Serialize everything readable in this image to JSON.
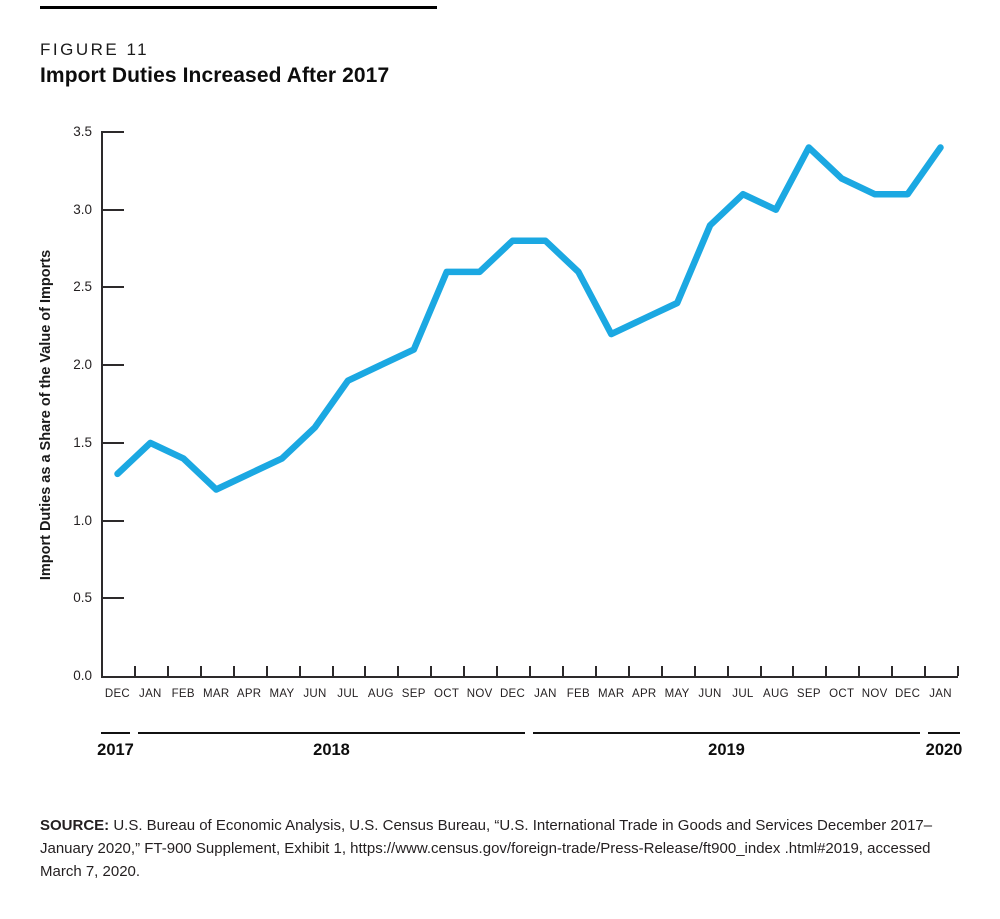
{
  "figure": {
    "label": "FIGURE 11",
    "title": "Import Duties Increased After 2017"
  },
  "chart_data": {
    "type": "line",
    "title": "Import Duties Increased After 2017",
    "xlabel": "",
    "ylabel": "Import Duties as a Share of the Value of Imports",
    "ylim": [
      0,
      3.5
    ],
    "ytick_step": 0.5,
    "grid": false,
    "legend": "none",
    "line_color": "#1BA8E2",
    "categories": [
      "DEC",
      "JAN",
      "FEB",
      "MAR",
      "APR",
      "MAY",
      "JUN",
      "JUL",
      "AUG",
      "SEP",
      "OCT",
      "NOV",
      "DEC",
      "JAN",
      "FEB",
      "MAR",
      "APR",
      "MAY",
      "JUN",
      "JUL",
      "AUG",
      "SEP",
      "OCT",
      "NOV",
      "DEC",
      "JAN"
    ],
    "values": [
      1.3,
      1.5,
      1.4,
      1.2,
      1.3,
      1.4,
      1.6,
      1.9,
      2.0,
      2.1,
      2.6,
      2.6,
      2.8,
      2.8,
      2.6,
      2.2,
      2.3,
      2.4,
      2.9,
      3.1,
      3.0,
      3.4,
      3.2,
      3.1,
      3.1,
      3.4
    ],
    "year_groups": [
      {
        "label": "2017",
        "months": 1
      },
      {
        "label": "2018",
        "months": 12
      },
      {
        "label": "2019",
        "months": 12
      },
      {
        "label": "2020",
        "months": 1
      }
    ]
  },
  "source": {
    "label": "SOURCE:",
    "lines": [
      " U.S. Bureau of Economic Analysis, U.S. Census Bureau, “U.S. International Trade in Goods and Services December",
      "2017–January 2020,” FT-900 Supplement, Exhibit 1, https://www.census.gov/foreign-trade/Press-Release/ft900_index",
      ".html#2019, accessed March 7, 2020."
    ]
  }
}
